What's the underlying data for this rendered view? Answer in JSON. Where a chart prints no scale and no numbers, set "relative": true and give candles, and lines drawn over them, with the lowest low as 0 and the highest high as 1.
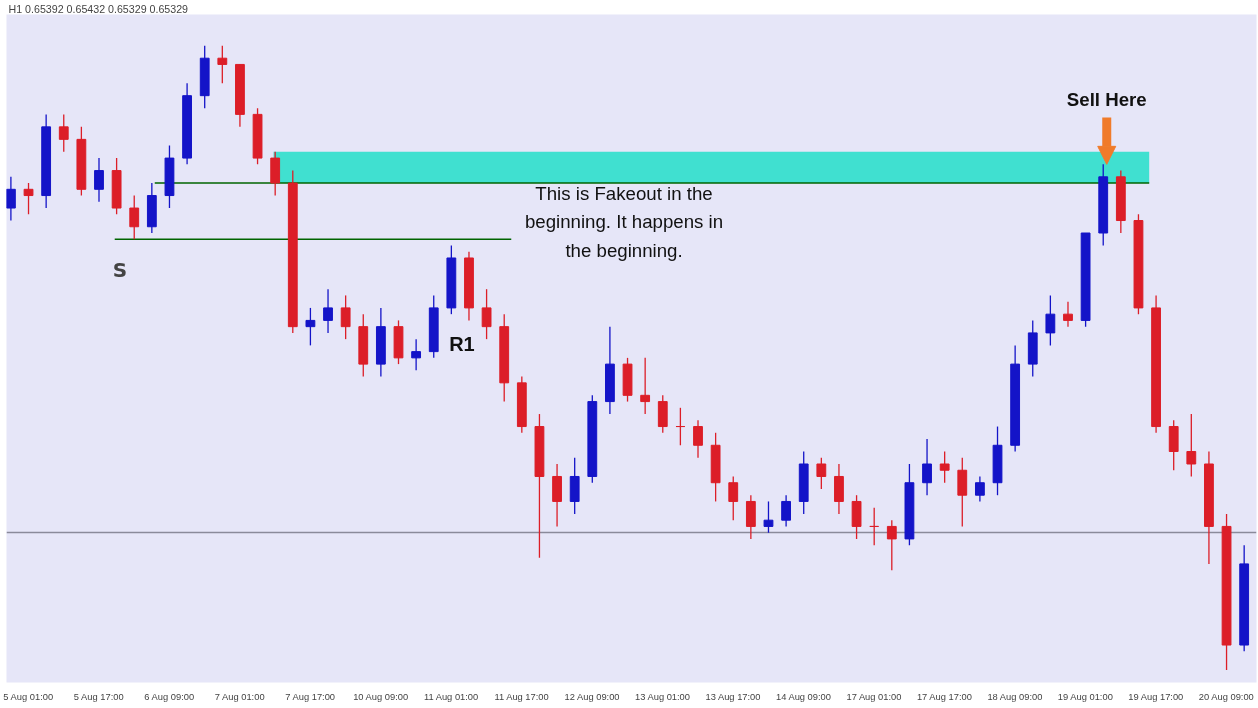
{
  "chart_data": {
    "type": "candlestick",
    "title": "H1  0.65392 0.65432 0.65329 0.65329",
    "relative": true,
    "categories": [
      null,
      "5 Aug 01:00",
      null,
      null,
      null,
      "5 Aug 17:00",
      null,
      null,
      null,
      "6 Aug 09:00",
      null,
      null,
      null,
      "7 Aug 01:00",
      null,
      null,
      null,
      "7 Aug 17:00",
      null,
      null,
      null,
      "10 Aug 09:00",
      null,
      null,
      null,
      "11 Aug 01:00",
      null,
      null,
      null,
      "11 Aug 17:00",
      null,
      null,
      null,
      "12 Aug 09:00",
      null,
      null,
      null,
      "13 Aug 01:00",
      null,
      null,
      null,
      "13 Aug 17:00",
      null,
      null,
      null,
      "14 Aug 09:00",
      null,
      null,
      null,
      "17 Aug 01:00",
      null,
      null,
      null,
      "17 Aug 17:00",
      null,
      null,
      null,
      "18 Aug 09:00",
      null,
      null,
      null,
      "19 Aug 01:00",
      null,
      null,
      null,
      "19 Aug 17:00",
      null,
      null,
      null,
      "20 Aug 09:00",
      null
    ],
    "ohlc": [
      [
        0.74,
        0.79,
        0.72,
        0.77
      ],
      [
        0.77,
        0.78,
        0.73,
        0.76
      ],
      [
        0.76,
        0.89,
        0.74,
        0.87
      ],
      [
        0.87,
        0.89,
        0.83,
        0.85
      ],
      [
        0.85,
        0.87,
        0.76,
        0.77
      ],
      [
        0.77,
        0.82,
        0.75,
        0.8
      ],
      [
        0.8,
        0.82,
        0.73,
        0.74
      ],
      [
        0.74,
        0.76,
        0.69,
        0.71
      ],
      [
        0.71,
        0.78,
        0.7,
        0.76
      ],
      [
        0.76,
        0.84,
        0.74,
        0.82
      ],
      [
        0.82,
        0.94,
        0.81,
        0.92
      ],
      [
        0.92,
        1.0,
        0.9,
        0.98
      ],
      [
        0.98,
        1.0,
        0.94,
        0.97
      ],
      [
        0.97,
        0.97,
        0.87,
        0.89
      ],
      [
        0.89,
        0.9,
        0.81,
        0.82
      ],
      [
        0.82,
        0.83,
        0.76,
        0.78
      ],
      [
        0.78,
        0.8,
        0.54,
        0.55
      ],
      [
        0.55,
        0.58,
        0.52,
        0.56
      ],
      [
        0.56,
        0.61,
        0.54,
        0.58
      ],
      [
        0.58,
        0.6,
        0.53,
        0.55
      ],
      [
        0.55,
        0.57,
        0.47,
        0.49
      ],
      [
        0.49,
        0.58,
        0.47,
        0.55
      ],
      [
        0.55,
        0.56,
        0.49,
        0.5
      ],
      [
        0.5,
        0.53,
        0.48,
        0.51
      ],
      [
        0.51,
        0.6,
        0.5,
        0.58
      ],
      [
        0.58,
        0.68,
        0.57,
        0.66
      ],
      [
        0.66,
        0.67,
        0.56,
        0.58
      ],
      [
        0.58,
        0.61,
        0.53,
        0.55
      ],
      [
        0.55,
        0.57,
        0.43,
        0.46
      ],
      [
        0.46,
        0.47,
        0.38,
        0.39
      ],
      [
        0.39,
        0.41,
        0.18,
        0.31
      ],
      [
        0.31,
        0.33,
        0.23,
        0.27
      ],
      [
        0.27,
        0.34,
        0.25,
        0.31
      ],
      [
        0.31,
        0.44,
        0.3,
        0.43
      ],
      [
        0.43,
        0.55,
        0.41,
        0.49
      ],
      [
        0.49,
        0.5,
        0.43,
        0.44
      ],
      [
        0.44,
        0.5,
        0.41,
        0.43
      ],
      [
        0.43,
        0.44,
        0.38,
        0.39
      ],
      [
        0.39,
        0.42,
        0.36,
        0.39
      ],
      [
        0.39,
        0.4,
        0.34,
        0.36
      ],
      [
        0.36,
        0.38,
        0.27,
        0.3
      ],
      [
        0.3,
        0.31,
        0.24,
        0.27
      ],
      [
        0.27,
        0.28,
        0.21,
        0.23
      ],
      [
        0.23,
        0.27,
        0.22,
        0.24
      ],
      [
        0.24,
        0.28,
        0.23,
        0.27
      ],
      [
        0.27,
        0.35,
        0.25,
        0.33
      ],
      [
        0.33,
        0.34,
        0.29,
        0.31
      ],
      [
        0.31,
        0.33,
        0.25,
        0.27
      ],
      [
        0.27,
        0.28,
        0.21,
        0.23
      ],
      [
        0.23,
        0.26,
        0.2,
        0.23
      ],
      [
        0.23,
        0.24,
        0.16,
        0.21
      ],
      [
        0.21,
        0.33,
        0.2,
        0.3
      ],
      [
        0.3,
        0.37,
        0.28,
        0.33
      ],
      [
        0.33,
        0.35,
        0.3,
        0.32
      ],
      [
        0.32,
        0.34,
        0.23,
        0.28
      ],
      [
        0.28,
        0.31,
        0.27,
        0.3
      ],
      [
        0.3,
        0.39,
        0.28,
        0.36
      ],
      [
        0.36,
        0.52,
        0.35,
        0.49
      ],
      [
        0.49,
        0.56,
        0.47,
        0.54
      ],
      [
        0.54,
        0.6,
        0.52,
        0.57
      ],
      [
        0.57,
        0.59,
        0.55,
        0.56
      ],
      [
        0.56,
        0.7,
        0.55,
        0.7
      ],
      [
        0.7,
        0.81,
        0.68,
        0.79
      ],
      [
        0.79,
        0.8,
        0.7,
        0.72
      ],
      [
        0.72,
        0.73,
        0.57,
        0.58
      ],
      [
        0.58,
        0.6,
        0.38,
        0.39
      ],
      [
        0.39,
        0.4,
        0.32,
        0.35
      ],
      [
        0.35,
        0.41,
        0.31,
        0.33
      ],
      [
        0.33,
        0.35,
        0.17,
        0.23
      ],
      [
        0.23,
        0.25,
        0.0,
        0.04
      ],
      [
        0.04,
        0.2,
        0.03,
        0.17
      ]
    ],
    "colors": [
      "#1414c8",
      "#dc1e28",
      "#1414c8",
      "#dc1e28",
      "#dc1e28",
      "#1414c8",
      "#dc1e28",
      "#dc1e28",
      "#1414c8",
      "#1414c8",
      "#1414c8",
      "#1414c8",
      "#dc1e28",
      "#dc1e28",
      "#dc1e28",
      "#dc1e28",
      "#dc1e28",
      "#1414c8",
      "#1414c8",
      "#dc1e28",
      "#dc1e28",
      "#1414c8",
      "#dc1e28",
      "#1414c8",
      "#1414c8",
      "#1414c8",
      "#dc1e28",
      "#dc1e28",
      "#dc1e28",
      "#dc1e28",
      "#dc1e28",
      "#dc1e28",
      "#1414c8",
      "#1414c8",
      "#1414c8",
      "#dc1e28",
      "#dc1e28",
      "#dc1e28",
      "#dc1e28",
      "#dc1e28",
      "#dc1e28",
      "#dc1e28",
      "#dc1e28",
      "#1414c8",
      "#1414c8",
      "#1414c8",
      "#dc1e28",
      "#dc1e28",
      "#dc1e28",
      "#dc1e28",
      "#dc1e28",
      "#1414c8",
      "#1414c8",
      "#dc1e28",
      "#dc1e28",
      "#1414c8",
      "#1414c8",
      "#1414c8",
      "#1414c8",
      "#1414c8",
      "#dc1e28",
      "#1414c8",
      "#1414c8",
      "#dc1e28",
      "#dc1e28",
      "#dc1e28",
      "#dc1e28",
      "#dc1e28",
      "#dc1e28",
      "#dc1e28",
      "#1414c8"
    ],
    "bands": [
      {
        "axis": "y",
        "from": 0.78,
        "to": 0.83,
        "color": "#40e0d0"
      }
    ],
    "ref_lines": [
      {
        "axis": "y",
        "value": 0.78,
        "color": "#006400"
      },
      {
        "axis": "y",
        "value": 0.69,
        "label": "S",
        "color": "#006400"
      },
      {
        "axis": "y",
        "value": 0.22,
        "color": "#8a8a9a"
      }
    ],
    "annotations": [
      "R1",
      "This is Fakeout in the beginning. It happens in the beginning.",
      {
        "text": "Sell Here",
        "y": 0.81
      }
    ],
    "grid": false
  }
}
